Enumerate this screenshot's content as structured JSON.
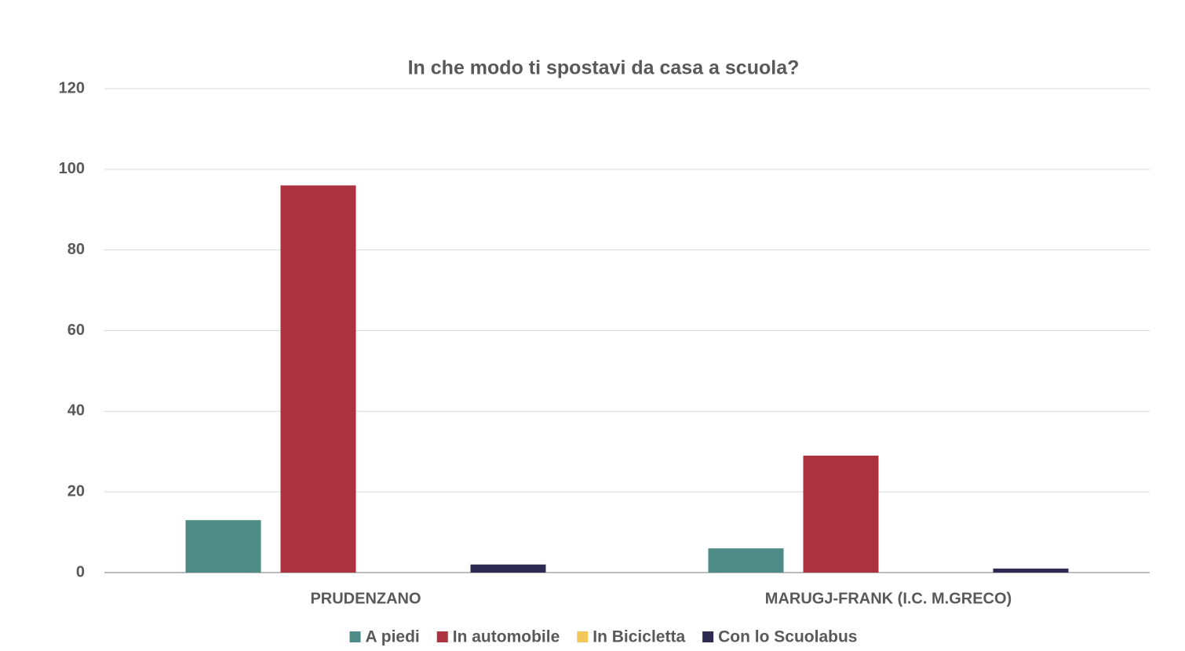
{
  "chart_data": {
    "type": "bar",
    "title": "In che modo ti spostavi da casa a scuola?",
    "categories": [
      "PRUDENZANO",
      "MARUGJ-FRANK (I.C. M.GRECO)"
    ],
    "series": [
      {
        "name": "A piedi",
        "color": "#4e8b86",
        "values": [
          13,
          6
        ]
      },
      {
        "name": "In automobile",
        "color": "#ad323f",
        "values": [
          96,
          29
        ]
      },
      {
        "name": "In Bicicletta",
        "color": "#f2c75c",
        "values": [
          0,
          0
        ]
      },
      {
        "name": "Con lo Scuolabus",
        "color": "#2e2a52",
        "values": [
          2,
          1
        ]
      }
    ],
    "ylim": [
      0,
      120
    ],
    "yticks": [
      0,
      20,
      40,
      60,
      80,
      100,
      120
    ],
    "grid": true,
    "legend": "bottom"
  }
}
